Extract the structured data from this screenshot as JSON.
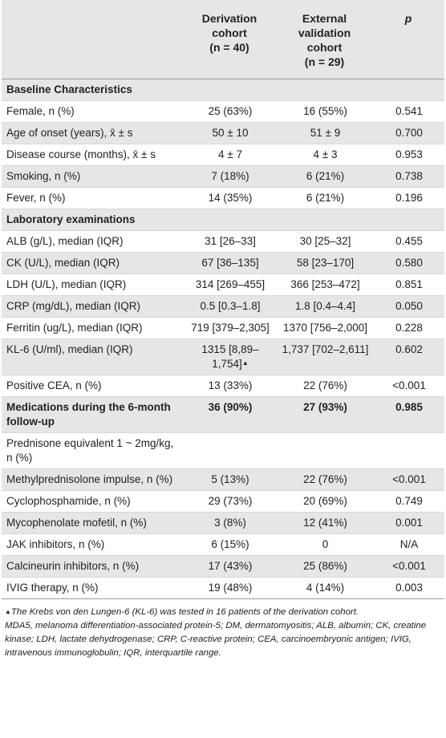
{
  "headers": {
    "col1": "",
    "col2_line1": "Derivation",
    "col2_line2": "cohort",
    "col2_line3": "(n = 40)",
    "col3_line1": "External",
    "col3_line2": "validation",
    "col3_line3": "cohort",
    "col3_line4": "(n = 29)",
    "col4": "p"
  },
  "rows": [
    {
      "label": "Baseline Characteristics",
      "section": true
    },
    {
      "label": "Female, n (%)",
      "derivation": "25 (63%)",
      "validation": "16 (55%)",
      "p": "0.541"
    },
    {
      "label": "Age of onset (years), x̄ ± s",
      "derivation": "50 ± 10",
      "validation": "51 ± 9",
      "p": "0.700"
    },
    {
      "label": "Disease course (months), x̄ ± s",
      "derivation": "4 ± 7",
      "validation": "4 ± 3",
      "p": "0.953"
    },
    {
      "label": "Smoking, n (%)",
      "derivation": "7 (18%)",
      "validation": "6 (21%)",
      "p": "0.738"
    },
    {
      "label": "Fever, n (%)",
      "derivation": "14 (35%)",
      "validation": "6 (21%)",
      "p": "0.196"
    },
    {
      "label": "Laboratory examinations",
      "section": true
    },
    {
      "label": "ALB (g/L), median (IQR)",
      "derivation": "31 [26–33]",
      "validation": "30 [25–32]",
      "p": "0.455"
    },
    {
      "label": "CK (U/L), median (IQR)",
      "derivation": "67 [36–135]",
      "validation": "58 [23–170]",
      "p": "0.580"
    },
    {
      "label": "LDH (U/L), median (IQR)",
      "derivation": "314 [269–455]",
      "validation": "366 [253–472]",
      "p": "0.851"
    },
    {
      "label": "CRP (mg/dL), median (IQR)",
      "derivation": "0.5 [0.3–1.8]",
      "validation": "1.8 [0.4–4.4]",
      "p": "0.050"
    },
    {
      "label": "Ferritin (ug/L), median (IQR)",
      "derivation": "719 [379–2,305]",
      "validation": "1370 [756–2,000]",
      "p": "0.228"
    },
    {
      "label": "KL-6 (U/ml), median (IQR)",
      "derivation": "1315 [8,89–1,754]",
      "derivation_mark": "▲",
      "validation": "1,737 [702–2,611]",
      "p": "0.602"
    },
    {
      "label": "Positive CEA, n (%)",
      "derivation": "13 (33%)",
      "validation": "22 (76%)",
      "p": "<0.001"
    },
    {
      "label": "Medications during the 6-month follow-up",
      "section": true,
      "derivation": "36 (90%)",
      "validation": "27 (93%)",
      "p": "0.985"
    },
    {
      "label": "Prednisone equivalent 1 ~ 2mg/kg, n (%)",
      "derivation": "",
      "validation": "",
      "p": ""
    },
    {
      "label": "Methylprednisolone impulse, n (%)",
      "derivation": "5 (13%)",
      "validation": "22 (76%)",
      "p": "<0.001"
    },
    {
      "label": "Cyclophosphamide, n (%)",
      "derivation": "29 (73%)",
      "validation": "20 (69%)",
      "p": "0.749"
    },
    {
      "label": "Mycophenolate mofetil, n (%)",
      "derivation": "3 (8%)",
      "validation": "12 (41%)",
      "p": "0.001"
    },
    {
      "label": "JAK inhibitors, n (%)",
      "derivation": "6 (15%)",
      "validation": "0",
      "p": "N/A"
    },
    {
      "label": "Calcineurin inhibitors, n (%)",
      "derivation": "17 (43%)",
      "validation": "25 (86%)",
      "p": "<0.001"
    },
    {
      "label": "IVIG therapy, n (%)",
      "derivation": "19 (48%)",
      "validation": "4 (14%)",
      "p": "0.003"
    }
  ],
  "footnote_mark": "▲",
  "footnote_line1": "The Krebs von den Lungen-6 (KL-6) was tested in 16 patients of the derivation cohort.",
  "footnote_line2": "MDA5, melanoma differentiation-associated protein-5; DM, dermatomyositis; ALB, albumin; CK, creatine kinase; LDH, lactate dehydrogenase; CRP, C-reactive protein; CEA, carcinoembryonic antigen; IVIG, intravenous immunoglobulin; IQR, interquartile range."
}
